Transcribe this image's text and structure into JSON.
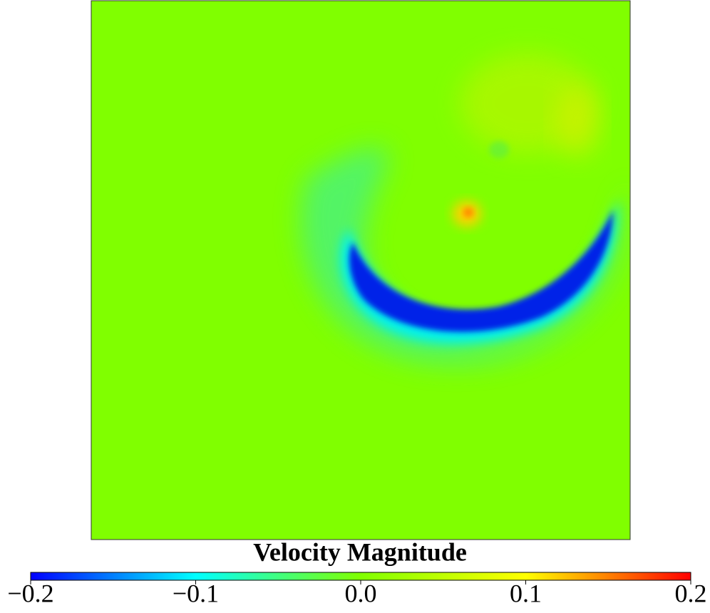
{
  "chart_data": {
    "type": "colorbar",
    "title": "Velocity Magnitude",
    "xlim": [
      -0.2,
      0.2
    ],
    "xticks": [
      {
        "value": -0.2,
        "label": "−0.2"
      },
      {
        "value": -0.1,
        "label": "−0.1"
      },
      {
        "value": 0,
        "label": "0.0"
      },
      0.1,
      0.2
    ],
    "colormap": [
      "#0000ff",
      "#00ffff",
      "#80ff00",
      "#ffff00",
      "#ff0000"
    ]
  }
}
